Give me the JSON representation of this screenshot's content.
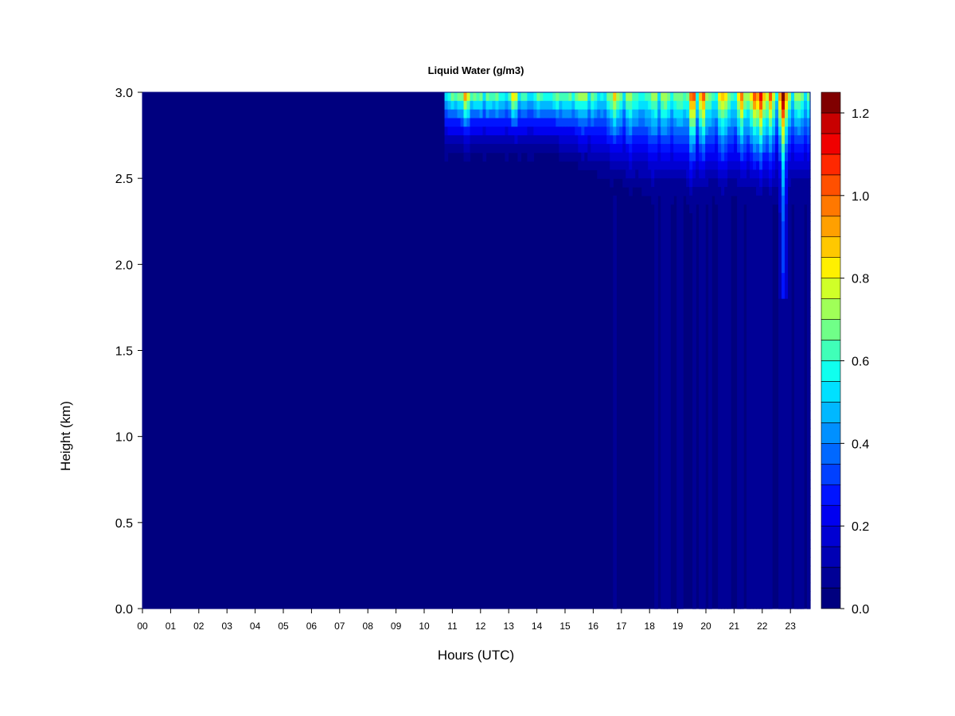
{
  "chart_data": {
    "type": "heatmap",
    "title": "Liquid Water (g/m3)",
    "xlabel": "Hours (UTC)",
    "ylabel": "Height (km)",
    "x_ticks": [
      "00",
      "01",
      "02",
      "03",
      "04",
      "05",
      "06",
      "07",
      "08",
      "09",
      "10",
      "11",
      "12",
      "13",
      "14",
      "15",
      "16",
      "17",
      "18",
      "19",
      "20",
      "21",
      "22",
      "23"
    ],
    "y_ticks": [
      "0.0",
      "0.5",
      "1.0",
      "1.5",
      "2.0",
      "2.5",
      "3.0"
    ],
    "xlim": [
      0,
      23.8
    ],
    "ylim": [
      0,
      3.0
    ],
    "grid": false,
    "colorbar": {
      "ticks": [
        "0.0",
        "0.2",
        "0.4",
        "0.6",
        "0.8",
        "1.0",
        "1.2"
      ],
      "range": [
        0,
        1.25
      ],
      "levels": 25,
      "colors": [
        "#00007F",
        "#000096",
        "#0000B4",
        "#0000D2",
        "#0000F0",
        "#0014FF",
        "#0040FF",
        "#0068FF",
        "#0090FF",
        "#00B8FF",
        "#00E0FF",
        "#10FFEE",
        "#40FFB8",
        "#70FF88",
        "#A0FF58",
        "#D0FF28",
        "#FFF000",
        "#FFC800",
        "#FFA000",
        "#FF7800",
        "#FF5000",
        "#FF2800",
        "#F00000",
        "#C80000",
        "#800000"
      ]
    },
    "description_of_field": [
      {
        "hours": [
          0,
          10.3
        ],
        "heights_km": [
          0,
          3.0
        ],
        "value": 0.0
      },
      {
        "hours": [
          10.3,
          10.9
        ],
        "heights_km": [
          0.9,
          1.7
        ],
        "value": 0.03
      },
      {
        "hours": [
          11.2,
          23.8
        ],
        "heights_km": [
          2.4,
          3.0
        ],
        "value_range": [
          0.1,
          0.7
        ]
      },
      {
        "hours": [
          17,
          23.5
        ],
        "heights_km": [
          0,
          2.3
        ],
        "value_range": [
          0.02,
          0.12
        ]
      },
      {
        "hours": [
          22.6,
          23.0
        ],
        "heights_km": [
          1.8,
          3.0
        ],
        "value_range": [
          0.3,
          1.25
        ]
      },
      {
        "hours": [
          21.9,
          22.0
        ],
        "heights_km": [
          2.8,
          3.0
        ],
        "value": 1.1
      },
      {
        "hours": [
          19.5,
          19.6
        ],
        "heights_km": [
          2.9,
          3.0
        ],
        "value": 1.0
      },
      {
        "hours": [
          11.5,
          11.6
        ],
        "heights_km": [
          2.95,
          3.0
        ],
        "value": 0.85
      }
    ]
  }
}
